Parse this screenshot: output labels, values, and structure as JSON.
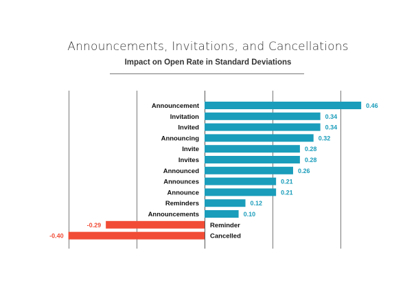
{
  "chart_data": {
    "type": "bar",
    "orientation": "horizontal",
    "title": "Announcements, Invitations, and Cancellations",
    "subtitle": "Impact on Open Rate in Standard Deviations",
    "categories": [
      "Announcement",
      "Invitation",
      "Invited",
      "Announcing",
      "Invite",
      "Invites",
      "Announced",
      "Announces",
      "Announce",
      "Reminders",
      "Announcements",
      "Reminder",
      "Cancelled"
    ],
    "values": [
      0.46,
      0.34,
      0.34,
      0.32,
      0.28,
      0.28,
      0.26,
      0.21,
      0.21,
      0.12,
      0.1,
      -0.29,
      -0.4
    ],
    "value_labels": [
      "0.46",
      "0.34",
      "0.34",
      "0.32",
      "0.28",
      "0.28",
      "0.26",
      "0.21",
      "0.21",
      "0.12",
      "0.10",
      "-0.29",
      "-0.40"
    ],
    "xlim": [
      -0.4,
      0.5
    ],
    "gridlines": [
      -0.4,
      -0.2,
      0,
      0.2,
      0.4
    ],
    "grid": true,
    "colors": {
      "positive": "#1a9dbb",
      "negative": "#f14c36"
    }
  }
}
